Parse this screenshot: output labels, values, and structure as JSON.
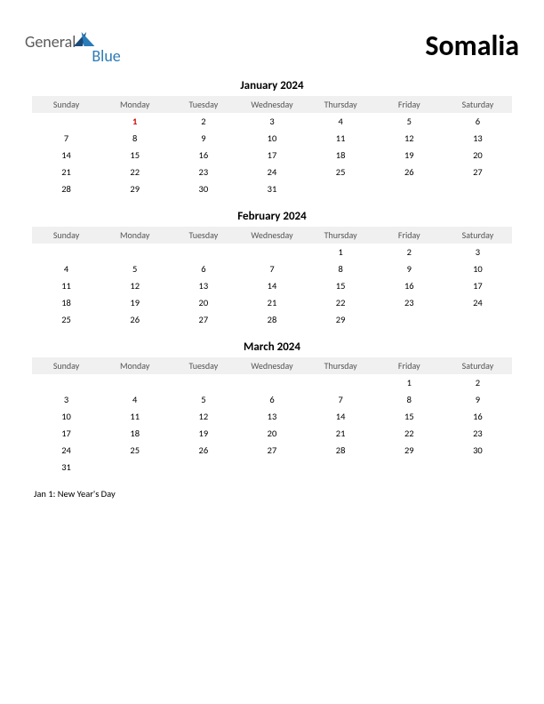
{
  "logo": {
    "part1": "General",
    "part2": "Blue"
  },
  "country": "Somalia",
  "day_headers": [
    "Sunday",
    "Monday",
    "Tuesday",
    "Wednesday",
    "Thursday",
    "Friday",
    "Saturday"
  ],
  "months": [
    {
      "title": "January 2024",
      "weeks": [
        [
          "",
          "1",
          "2",
          "3",
          "4",
          "5",
          "6"
        ],
        [
          "7",
          "8",
          "9",
          "10",
          "11",
          "12",
          "13"
        ],
        [
          "14",
          "15",
          "16",
          "17",
          "18",
          "19",
          "20"
        ],
        [
          "21",
          "22",
          "23",
          "24",
          "25",
          "26",
          "27"
        ],
        [
          "28",
          "29",
          "30",
          "31",
          "",
          "",
          ""
        ]
      ],
      "holiday_cells": [
        [
          0,
          1
        ]
      ]
    },
    {
      "title": "February 2024",
      "weeks": [
        [
          "",
          "",
          "",
          "",
          "1",
          "2",
          "3"
        ],
        [
          "4",
          "5",
          "6",
          "7",
          "8",
          "9",
          "10"
        ],
        [
          "11",
          "12",
          "13",
          "14",
          "15",
          "16",
          "17"
        ],
        [
          "18",
          "19",
          "20",
          "21",
          "22",
          "23",
          "24"
        ],
        [
          "25",
          "26",
          "27",
          "28",
          "29",
          "",
          ""
        ]
      ],
      "holiday_cells": []
    },
    {
      "title": "March 2024",
      "weeks": [
        [
          "",
          "",
          "",
          "",
          "",
          "1",
          "2"
        ],
        [
          "3",
          "4",
          "5",
          "6",
          "7",
          "8",
          "9"
        ],
        [
          "10",
          "11",
          "12",
          "13",
          "14",
          "15",
          "16"
        ],
        [
          "17",
          "18",
          "19",
          "20",
          "21",
          "22",
          "23"
        ],
        [
          "24",
          "25",
          "26",
          "27",
          "28",
          "29",
          "30"
        ],
        [
          "31",
          "",
          "",
          "",
          "",
          "",
          ""
        ]
      ],
      "holiday_cells": []
    }
  ],
  "holidays_text": "Jan 1: New Year's Day",
  "colors": {
    "header_bg": "#f0f0f0",
    "header_text": "#555555",
    "holiday": "#cc0000",
    "logo_general": "#5a5a5a",
    "logo_blue": "#2a7bb8"
  }
}
